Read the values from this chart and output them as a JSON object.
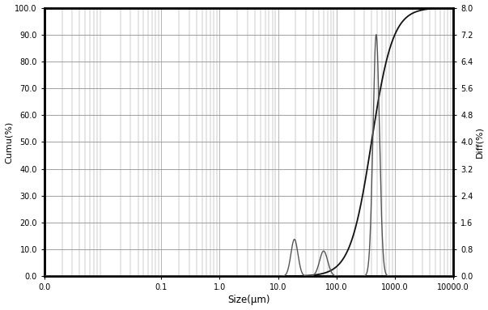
{
  "title": "",
  "xlabel": "Size(μm)",
  "ylabel_left": "Cumu(%)",
  "ylabel_right": "Diff(%)",
  "x_ticks_values": [
    0.001,
    0.1,
    1.0,
    10.0,
    100.0,
    1000.0,
    10000.0
  ],
  "x_ticks_labels": [
    "0.0",
    "0.1",
    "1.0",
    "10.0",
    "100.0",
    "1000.0",
    "10000.0"
  ],
  "ylim_left": [
    0.0,
    100.0
  ],
  "ylim_right": [
    0.0,
    8.0
  ],
  "yticks_left": [
    0.0,
    10.0,
    20.0,
    30.0,
    40.0,
    50.0,
    60.0,
    70.0,
    80.0,
    90.0,
    100.0
  ],
  "yticks_right": [
    0.0,
    0.8,
    1.6,
    2.4,
    3.2,
    4.0,
    4.8,
    5.6,
    6.4,
    7.2,
    8.0
  ],
  "background_color": "#ffffff",
  "grid_color": "#999999",
  "cumu_color": "#111111",
  "diff_color": "#555555"
}
